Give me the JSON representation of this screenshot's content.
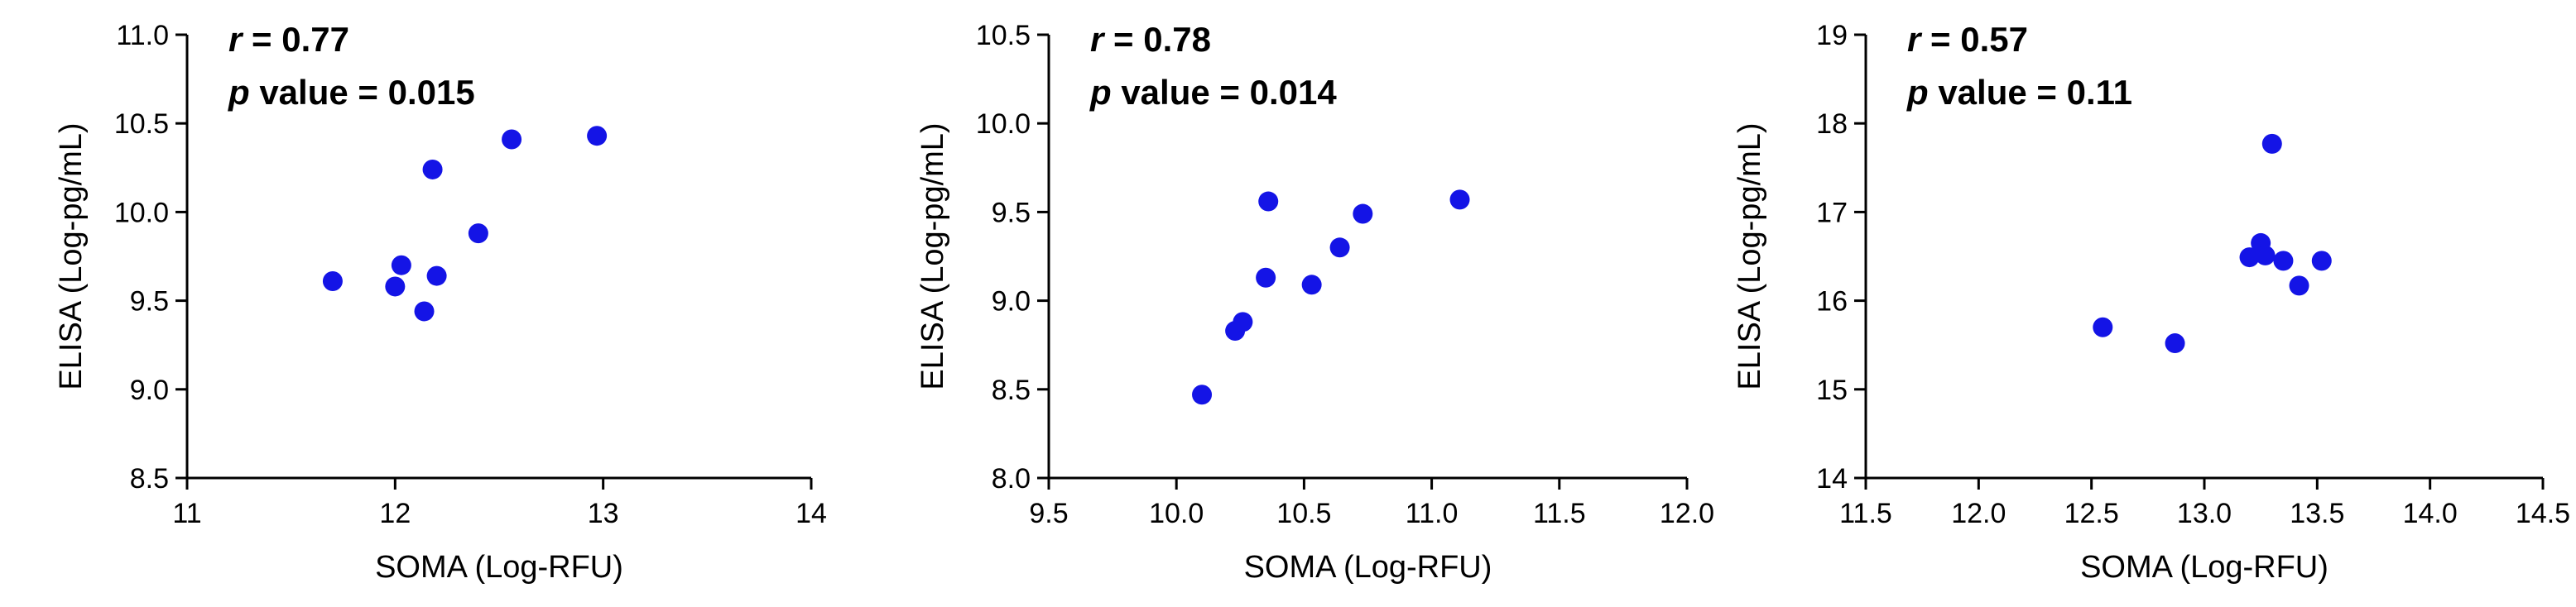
{
  "chart_data": [
    {
      "type": "scatter",
      "xlabel": "SOMA (Log-RFU)",
      "ylabel": "ELISA (Log-pg/mL)",
      "xlim": [
        11,
        14
      ],
      "ylim": [
        8.5,
        11.0
      ],
      "x_ticks": [
        "11",
        "12",
        "13",
        "14"
      ],
      "y_ticks": [
        "8.5",
        "9.0",
        "9.5",
        "10.0",
        "10.5",
        "11.0"
      ],
      "annotations": {
        "r_symbol": "r",
        "r_text": " = 0.77",
        "p_symbol": "p",
        "p_text": " value = 0.015"
      },
      "grid": false,
      "marker_color": "#1414e6",
      "points": [
        {
          "x": 11.7,
          "y": 9.61
        },
        {
          "x": 12.0,
          "y": 9.58
        },
        {
          "x": 12.03,
          "y": 9.7
        },
        {
          "x": 12.14,
          "y": 9.44
        },
        {
          "x": 12.18,
          "y": 10.24
        },
        {
          "x": 12.2,
          "y": 9.64
        },
        {
          "x": 12.4,
          "y": 9.88
        },
        {
          "x": 12.56,
          "y": 10.41
        },
        {
          "x": 12.97,
          "y": 10.43
        }
      ]
    },
    {
      "type": "scatter",
      "xlabel": "SOMA (Log-RFU)",
      "ylabel": "ELISA (Log-pg/mL)",
      "xlim": [
        9.5,
        12.0
      ],
      "ylim": [
        8.0,
        10.5
      ],
      "x_ticks": [
        "9.5",
        "10.0",
        "10.5",
        "11.0",
        "11.5",
        "12.0"
      ],
      "y_ticks": [
        "8.0",
        "8.5",
        "9.0",
        "9.5",
        "10.0",
        "10.5"
      ],
      "annotations": {
        "r_symbol": "r",
        "r_text": " = 0.78",
        "p_symbol": "p",
        "p_text": " value = 0.014"
      },
      "grid": false,
      "marker_color": "#1414e6",
      "points": [
        {
          "x": 10.1,
          "y": 8.47
        },
        {
          "x": 10.23,
          "y": 8.83
        },
        {
          "x": 10.26,
          "y": 8.88
        },
        {
          "x": 10.35,
          "y": 9.13
        },
        {
          "x": 10.36,
          "y": 9.56
        },
        {
          "x": 10.53,
          "y": 9.09
        },
        {
          "x": 10.64,
          "y": 9.3
        },
        {
          "x": 10.73,
          "y": 9.49
        },
        {
          "x": 11.11,
          "y": 9.57
        }
      ]
    },
    {
      "type": "scatter",
      "xlabel": "SOMA (Log-RFU)",
      "ylabel": "ELISA (Log-pg/mL)",
      "xlim": [
        11.5,
        14.5
      ],
      "ylim": [
        14,
        19
      ],
      "x_ticks": [
        "11.5",
        "12.0",
        "12.5",
        "13.0",
        "13.5",
        "14.0",
        "14.5"
      ],
      "y_ticks": [
        "14",
        "15",
        "16",
        "17",
        "18",
        "19"
      ],
      "annotations": {
        "r_symbol": "r",
        "r_text": " = 0.57",
        "p_symbol": "p",
        "p_text": " value = 0.11"
      },
      "grid": false,
      "marker_color": "#1414e6",
      "points": [
        {
          "x": 12.55,
          "y": 15.7
        },
        {
          "x": 12.87,
          "y": 15.52
        },
        {
          "x": 13.2,
          "y": 16.49
        },
        {
          "x": 13.25,
          "y": 16.65
        },
        {
          "x": 13.27,
          "y": 16.51
        },
        {
          "x": 13.3,
          "y": 17.77
        },
        {
          "x": 13.35,
          "y": 16.45
        },
        {
          "x": 13.42,
          "y": 16.17
        },
        {
          "x": 13.52,
          "y": 16.45
        }
      ]
    }
  ]
}
